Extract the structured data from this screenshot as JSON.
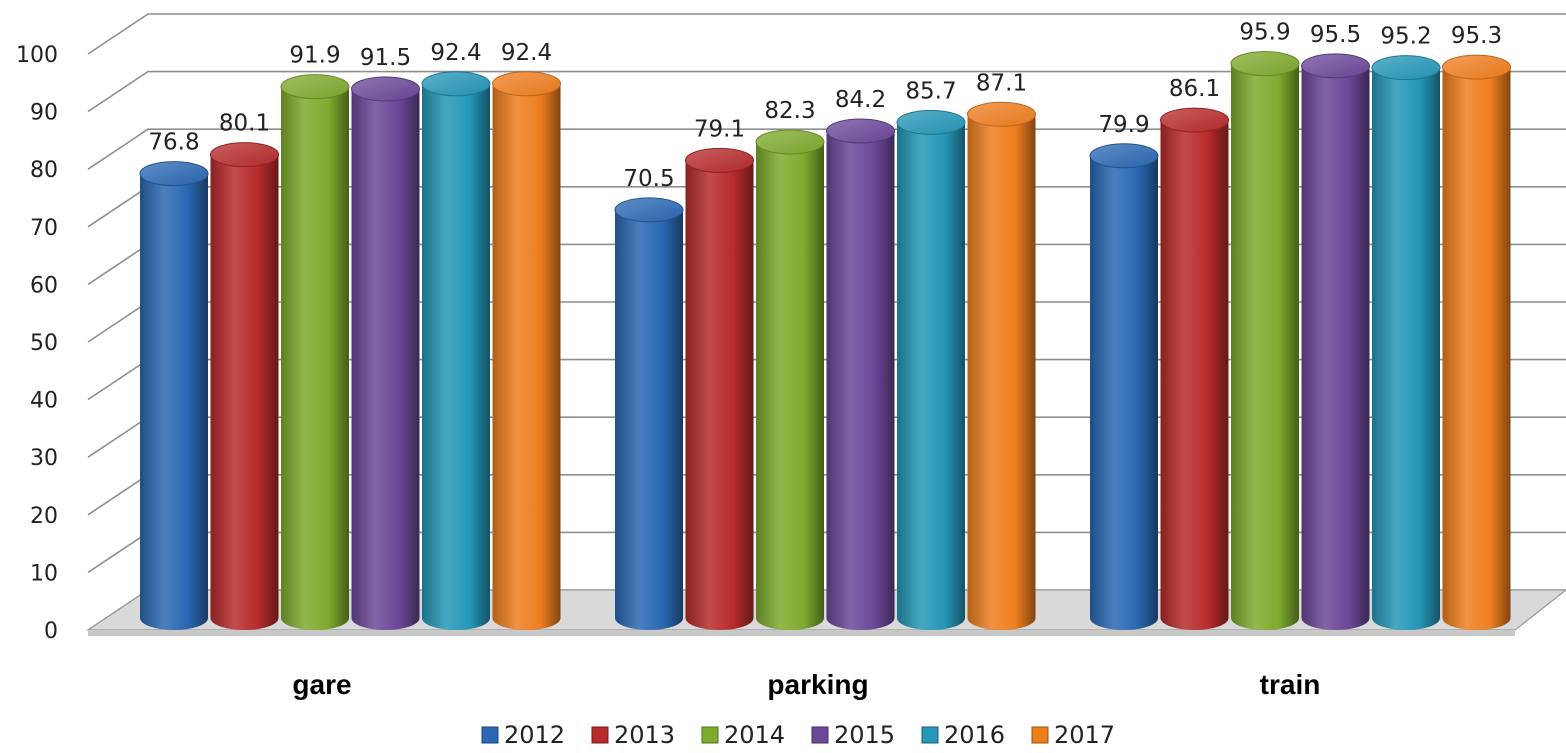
{
  "chart_data": {
    "type": "bar",
    "style": "3d-cylinder",
    "categories": [
      "gare",
      "parking",
      "train"
    ],
    "series": [
      {
        "name": "2012",
        "color": "#2a68b3",
        "values": [
          76.8,
          70.5,
          79.9
        ]
      },
      {
        "name": "2013",
        "color": "#b72b2b",
        "values": [
          80.1,
          79.1,
          86.1
        ]
      },
      {
        "name": "2014",
        "color": "#7eab2e",
        "values": [
          91.9,
          82.3,
          95.9
        ]
      },
      {
        "name": "2015",
        "color": "#6c4799",
        "values": [
          91.5,
          84.2,
          95.5
        ]
      },
      {
        "name": "2016",
        "color": "#2597b8",
        "values": [
          92.4,
          85.7,
          95.2
        ]
      },
      {
        "name": "2017",
        "color": "#ef7e1f",
        "values": [
          92.4,
          87.1,
          95.3
        ]
      }
    ],
    "yticks": [
      "0",
      "10",
      "20",
      "30",
      "40",
      "50",
      "60",
      "70",
      "80",
      "90",
      "100"
    ],
    "ylim": [
      0,
      100
    ],
    "grid": true,
    "legend_position": "bottom"
  }
}
